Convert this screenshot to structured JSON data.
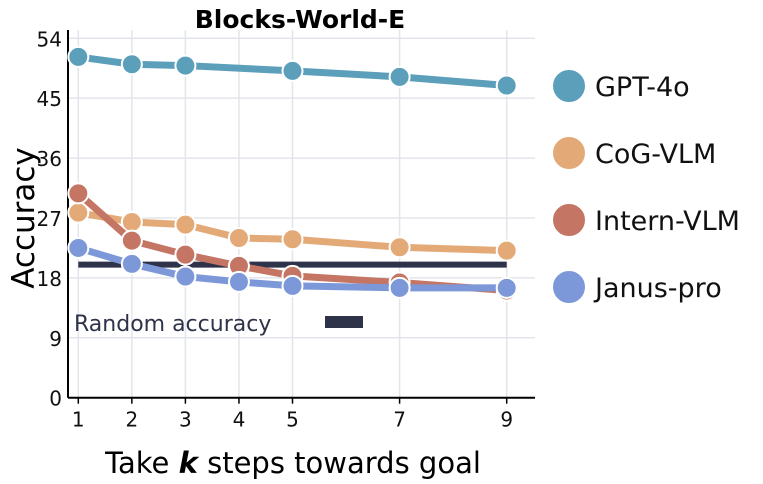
{
  "chart_data": {
    "type": "line",
    "title": "Blocks-World-E",
    "xlabel_parts": [
      "Take ",
      "k",
      " steps towards goal"
    ],
    "ylabel": "Accuracy",
    "x": [
      1,
      2,
      3,
      4,
      5,
      7,
      9
    ],
    "xticks": [
      "1",
      "2",
      "3",
      "4",
      "5",
      "7",
      "9"
    ],
    "yticks": [
      "0",
      "9",
      "18",
      "27",
      "36",
      "45",
      "54"
    ],
    "ylim": [
      0,
      54
    ],
    "grid": true,
    "legend_placement": "right",
    "series": [
      {
        "name": "GPT-4o",
        "color": "#5b9fbb",
        "values": [
          51.2,
          50.1,
          49.9,
          null,
          49.1,
          48.2,
          46.9
        ]
      },
      {
        "name": "CoG-VLM",
        "color": "#e3aa78",
        "values": [
          27.8,
          26.4,
          26.0,
          24.0,
          23.8,
          22.6,
          22.1
        ]
      },
      {
        "name": "Intern-VLM",
        "color": "#c57563",
        "values": [
          30.7,
          23.6,
          21.5,
          19.8,
          18.3,
          17.3,
          16.1
        ]
      },
      {
        "name": "Janus-pro",
        "color": "#7c98d8",
        "values": [
          22.5,
          20.1,
          18.2,
          17.4,
          16.8,
          16.5,
          16.5
        ]
      }
    ],
    "reference_line": {
      "name": "Random accuracy",
      "value": 20,
      "color": "#2e3349"
    }
  }
}
